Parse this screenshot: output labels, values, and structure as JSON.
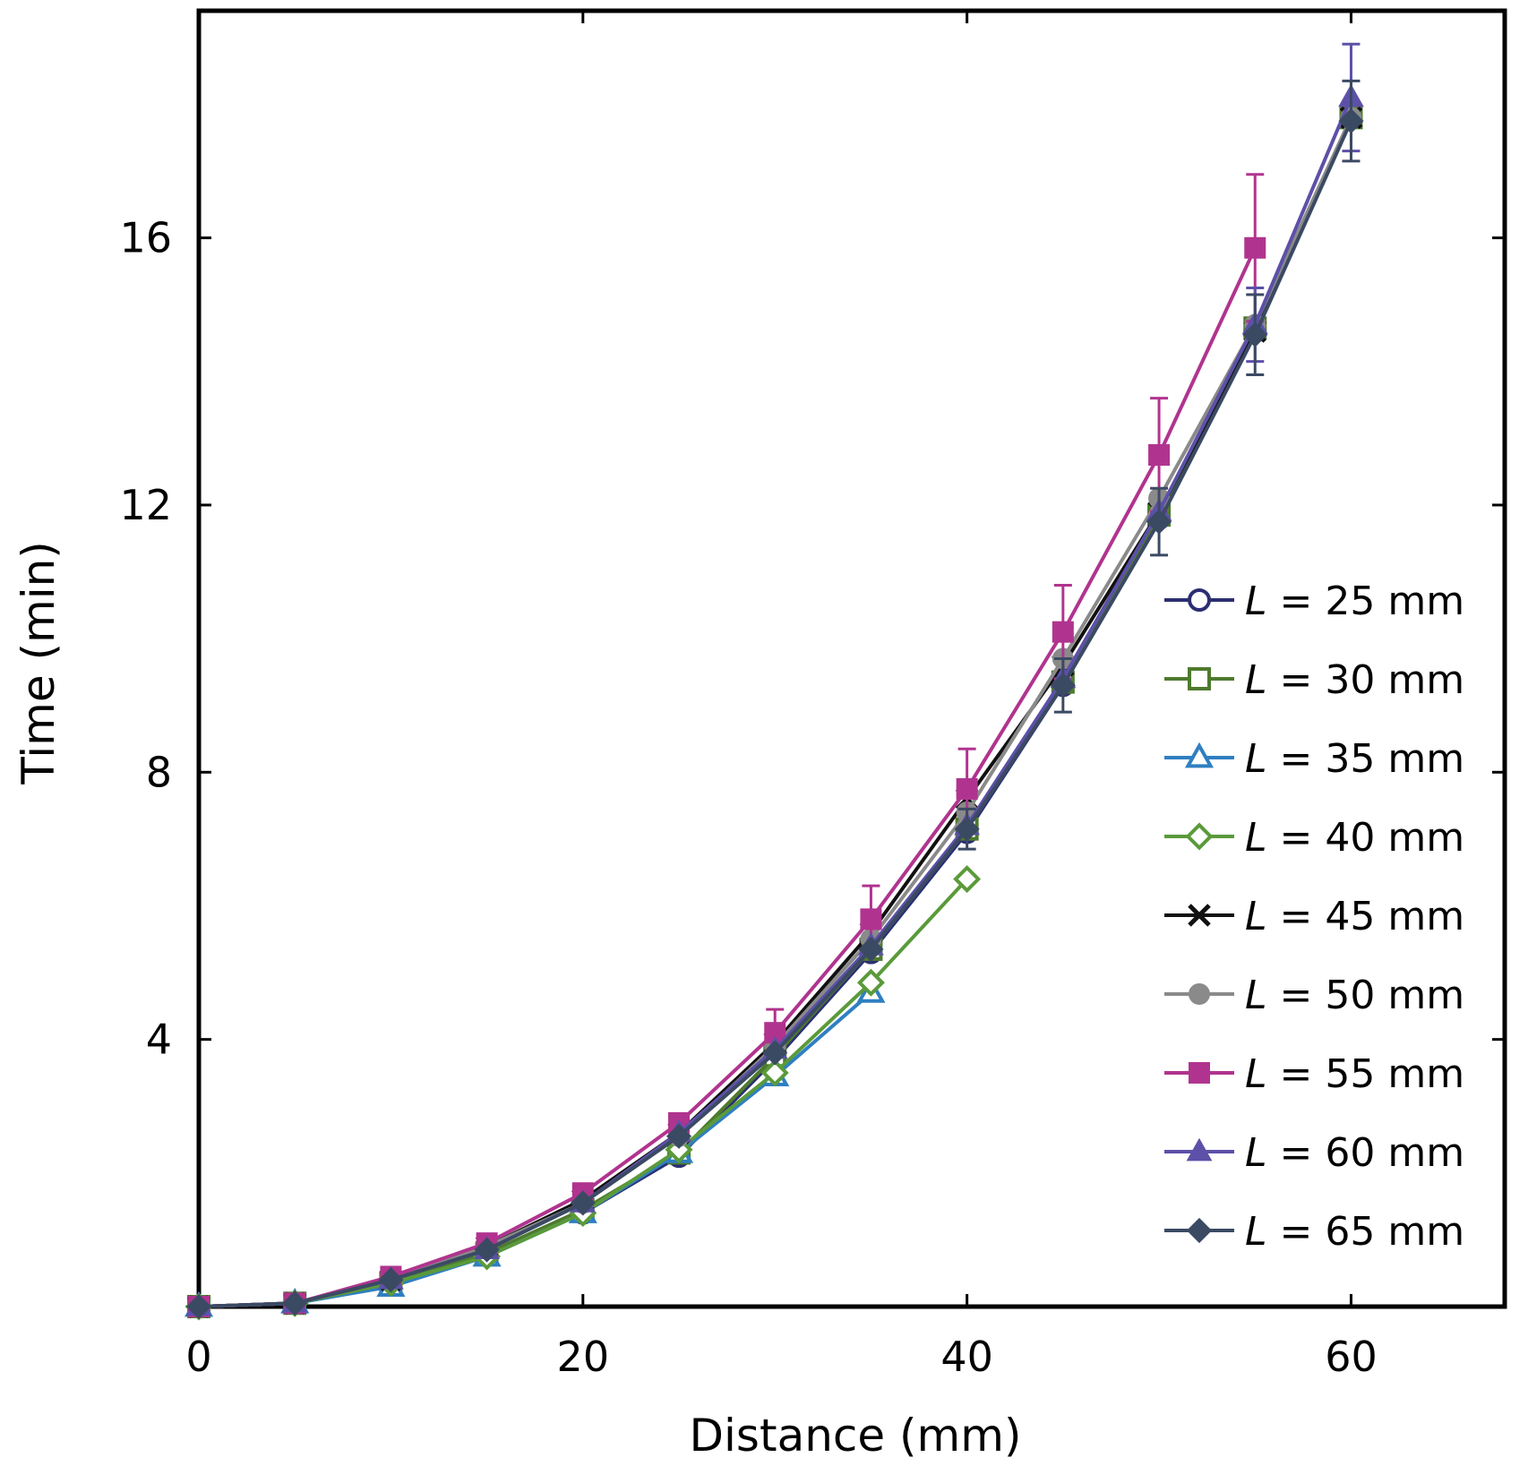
{
  "chart_data": {
    "type": "line",
    "title": "",
    "xlabel": "Distance (mm)",
    "ylabel": "Time (min)",
    "xlim": [
      0,
      68
    ],
    "ylim": [
      0,
      19.4
    ],
    "xticks": [
      0,
      20,
      40,
      60
    ],
    "yticks": [
      4,
      8,
      12,
      16
    ],
    "x_tick_labels": [
      "0",
      "20",
      "40",
      "60"
    ],
    "y_tick_labels": [
      "4",
      "8",
      "12",
      "16"
    ],
    "grid": false,
    "legend_position": "right",
    "series": [
      {
        "name": "L = 25 mm",
        "symbol": "L",
        "label_rest": " = 25 mm",
        "marker": "circle-open",
        "color": "#2b2f72",
        "x": [
          0,
          5,
          10,
          15,
          20,
          25,
          30,
          35,
          40,
          45,
          50,
          55,
          60
        ],
        "y": [
          0,
          0.05,
          0.35,
          0.8,
          1.4,
          2.25,
          3.7,
          5.3,
          7.1,
          9.3,
          11.8,
          14.6,
          17.8
        ],
        "err": []
      },
      {
        "name": "L = 30 mm",
        "symbol": "L",
        "label_rest": " = 30 mm",
        "marker": "square-open",
        "color": "#4e7a2e",
        "x": [
          0,
          5,
          10,
          15,
          20,
          25,
          30,
          35,
          40,
          45,
          50,
          55,
          60
        ],
        "y": [
          0,
          0.05,
          0.35,
          0.8,
          1.45,
          2.3,
          3.75,
          5.35,
          7.15,
          9.35,
          11.85,
          14.65,
          17.8
        ],
        "err": []
      },
      {
        "name": "L = 35 mm",
        "symbol": "L",
        "label_rest": " = 35 mm",
        "marker": "triangle-open",
        "color": "#2f7fc1",
        "x": [
          0,
          5,
          10,
          15,
          20,
          25,
          30,
          35
        ],
        "y": [
          0,
          0.05,
          0.3,
          0.75,
          1.4,
          2.3,
          3.45,
          4.7
        ],
        "err": []
      },
      {
        "name": "L = 40 mm",
        "symbol": "L",
        "label_rest": " = 40 mm",
        "marker": "diamond-open",
        "color": "#5a9a3a",
        "x": [
          0,
          5,
          10,
          15,
          20,
          25,
          30,
          35,
          40
        ],
        "y": [
          0,
          0.05,
          0.35,
          0.75,
          1.4,
          2.35,
          3.5,
          4.85,
          6.4
        ],
        "err": []
      },
      {
        "name": "L = 45 mm",
        "symbol": "L",
        "label_rest": " = 45 mm",
        "marker": "x",
        "color": "#111111",
        "x": [
          0,
          5,
          10,
          15,
          20,
          25,
          30,
          35,
          40,
          45,
          50,
          55,
          60
        ],
        "y": [
          0,
          0.05,
          0.4,
          0.9,
          1.6,
          2.6,
          3.95,
          5.6,
          7.6,
          9.6,
          11.9,
          14.6,
          17.8
        ],
        "err": []
      },
      {
        "name": "L = 50 mm",
        "symbol": "L",
        "label_rest": " = 50 mm",
        "marker": "circle-filled",
        "color": "#8a8a8a",
        "x": [
          0,
          5,
          10,
          15,
          20,
          25,
          30,
          35,
          40,
          45,
          50,
          55,
          60
        ],
        "y": [
          0,
          0.05,
          0.4,
          0.9,
          1.55,
          2.55,
          3.9,
          5.5,
          7.4,
          9.7,
          12.1,
          14.7,
          17.8
        ],
        "err": []
      },
      {
        "name": "L = 55 mm",
        "symbol": "L",
        "label_rest": " = 55 mm",
        "marker": "square-filled",
        "color": "#b0348f",
        "x": [
          0,
          5,
          10,
          15,
          20,
          25,
          30,
          35,
          40,
          45,
          50,
          55
        ],
        "y": [
          0,
          0.05,
          0.45,
          0.95,
          1.7,
          2.75,
          4.1,
          5.8,
          7.75,
          10.1,
          12.75,
          15.85
        ],
        "err": [
          0,
          0,
          0,
          0,
          0,
          0,
          0.35,
          0.5,
          0.6,
          0.7,
          0.85,
          1.1
        ]
      },
      {
        "name": "L = 60 mm",
        "symbol": "L",
        "label_rest": " = 60 mm",
        "marker": "triangle-filled",
        "color": "#5c50a8",
        "x": [
          0,
          5,
          10,
          15,
          20,
          25,
          30,
          35,
          40,
          45,
          50,
          55,
          60
        ],
        "y": [
          0,
          0.05,
          0.4,
          0.85,
          1.55,
          2.6,
          3.85,
          5.4,
          7.2,
          9.4,
          11.9,
          14.7,
          18.1
        ],
        "err": [
          0,
          0,
          0,
          0,
          0,
          0,
          0,
          0,
          0,
          0,
          0,
          0.55,
          0.8
        ]
      },
      {
        "name": "L = 65 mm",
        "symbol": "L",
        "label_rest": " = 65 mm",
        "marker": "diamond-filled",
        "color": "#3b4a63",
        "x": [
          0,
          5,
          10,
          15,
          20,
          25,
          30,
          35,
          40,
          45,
          50,
          55,
          60
        ],
        "y": [
          0,
          0.05,
          0.4,
          0.85,
          1.55,
          2.55,
          3.8,
          5.35,
          7.15,
          9.3,
          11.75,
          14.55,
          17.75
        ],
        "err": [
          0,
          0,
          0,
          0,
          0,
          0,
          0,
          0,
          0.3,
          0.4,
          0.5,
          0.6,
          0.6
        ]
      }
    ]
  }
}
